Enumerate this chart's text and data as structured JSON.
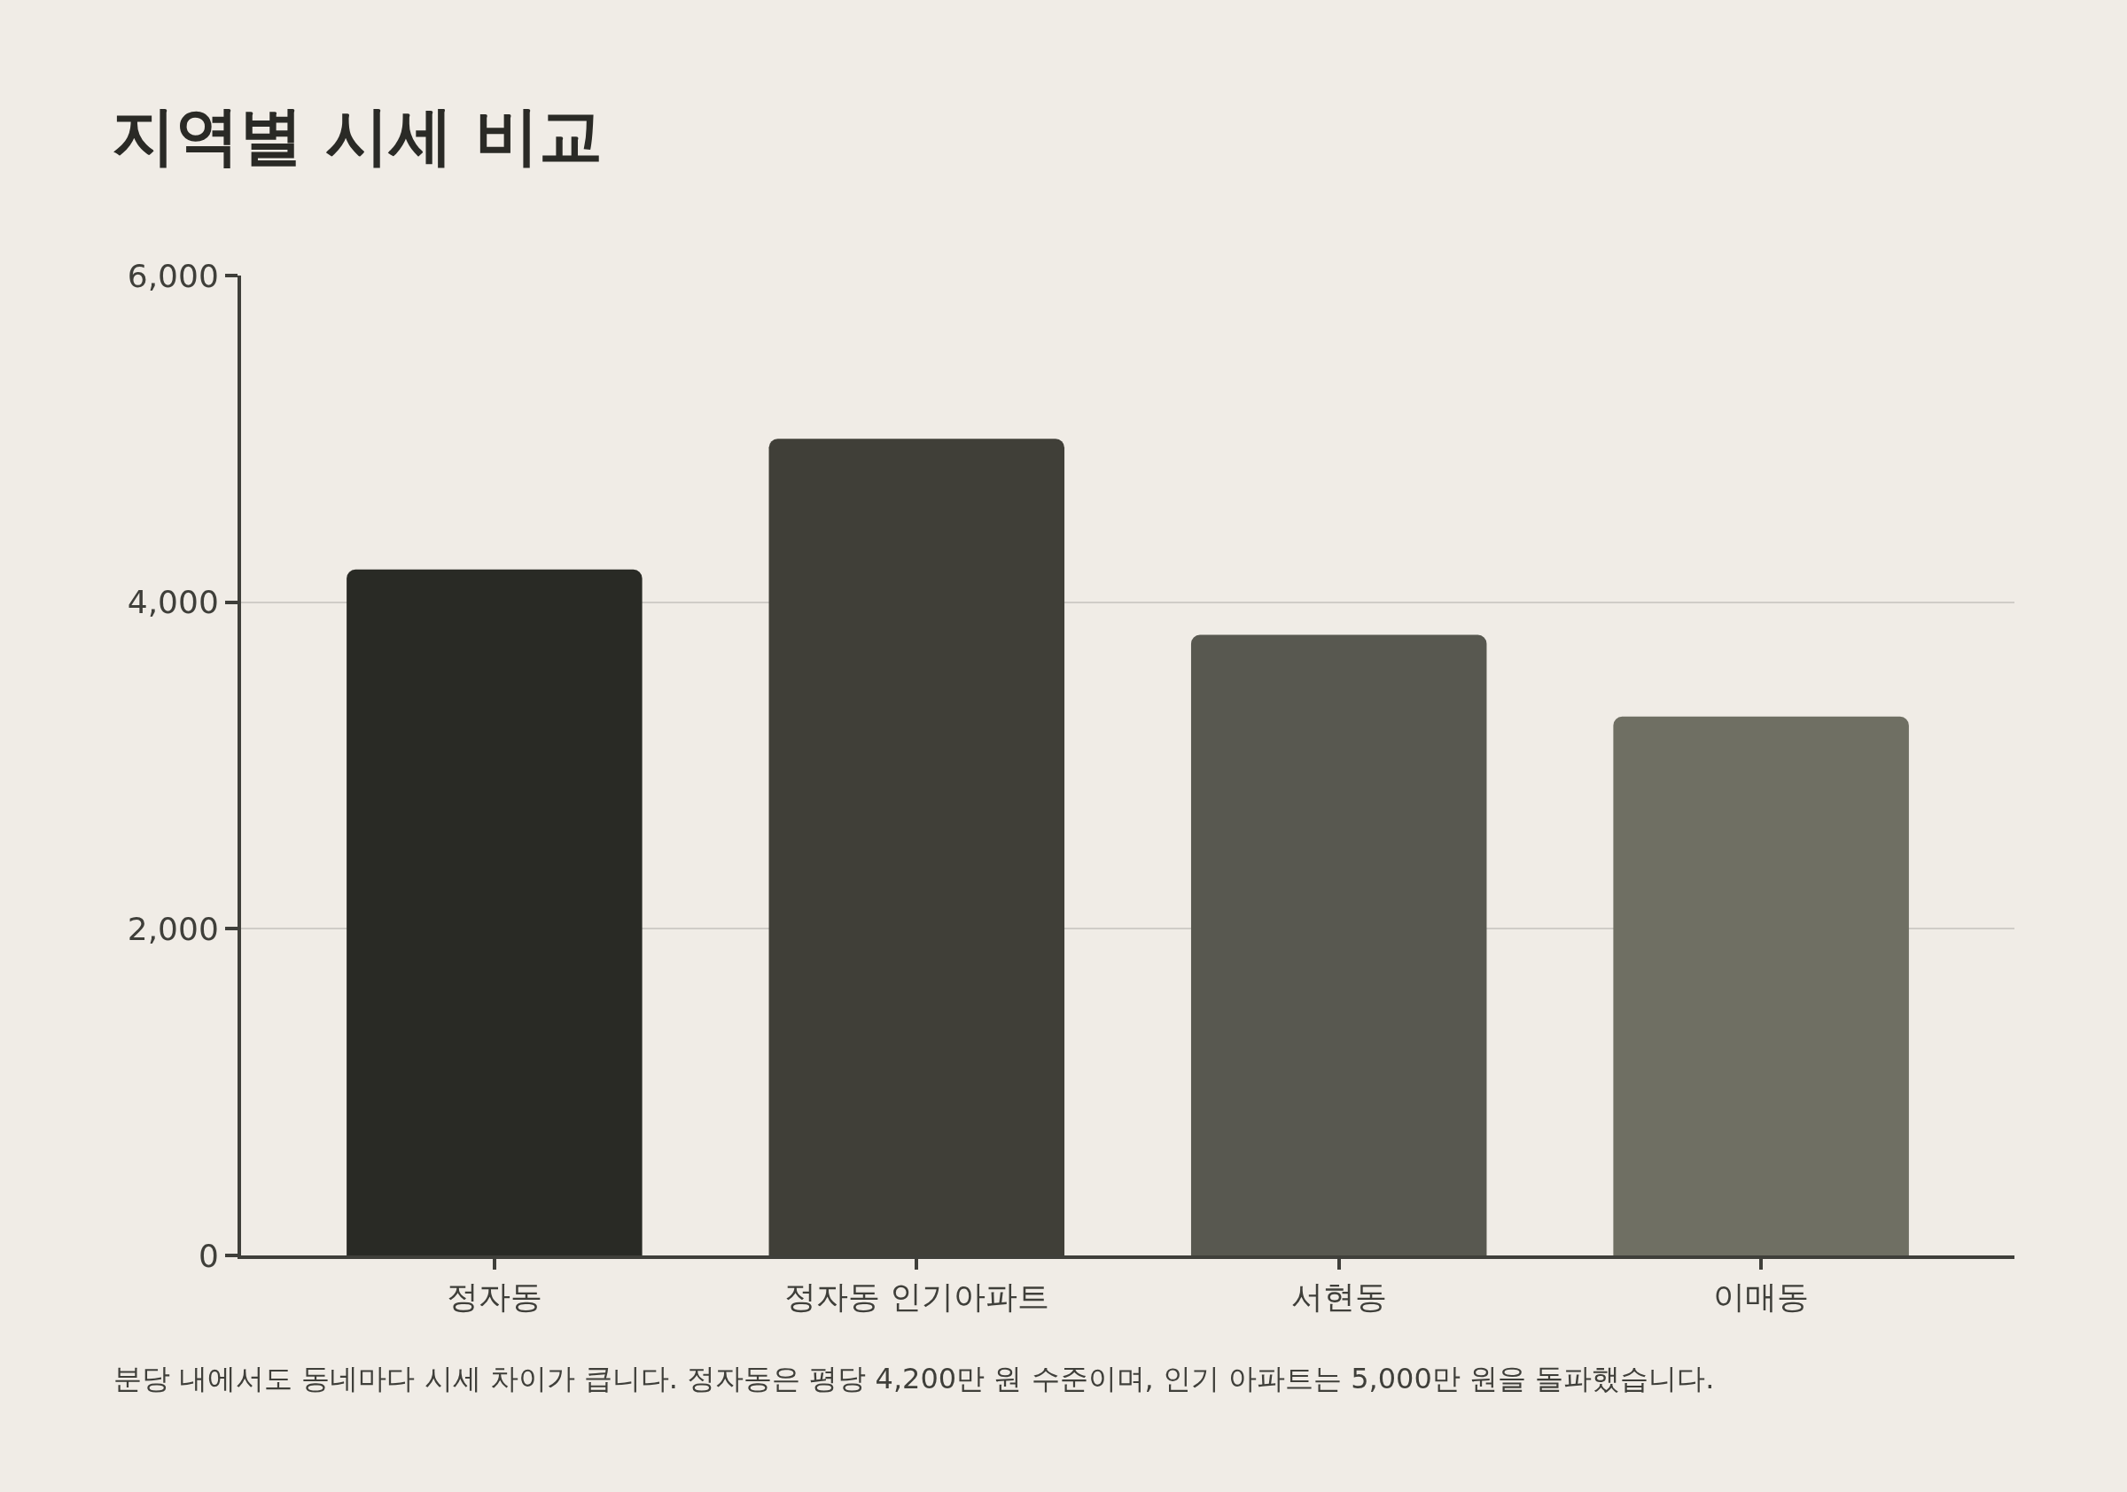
{
  "chart_data": {
    "type": "bar",
    "title": "지역별 시세 비교",
    "categories": [
      "정자동",
      "정자동 인기아파트",
      "서현동",
      "이매동"
    ],
    "values": [
      4200,
      5000,
      3800,
      3300
    ],
    "colors": [
      "#292a25",
      "#403f38",
      "#585850",
      "#6f6f63"
    ],
    "ylim": [
      0,
      6000
    ],
    "yticks": [
      {
        "value": 0,
        "label": "0"
      },
      {
        "value": 2000,
        "label": "2,000"
      },
      {
        "value": 4000,
        "label": "4,000"
      },
      {
        "value": 6000,
        "label": "6,000"
      }
    ],
    "grid": "y",
    "annotations": [
      "분당 내에서도 동네마다 시세 차이가 큽니다. 정자동은 평당 4,200만 원 수준이며, 인기 아파트는 5,000만 원을 돌파했습니다."
    ]
  }
}
